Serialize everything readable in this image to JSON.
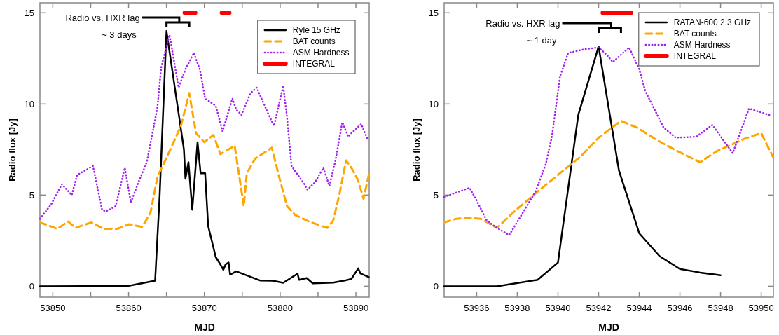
{
  "chart_data": [
    {
      "type": "line",
      "xlabel": "MJD",
      "ylabel": "Radio flux [Jy]",
      "xlim": [
        53848.3,
        53891.75
      ],
      "ylim": [
        -0.6,
        15.55
      ],
      "xticks": [
        53850,
        {
          "value": 53855,
          "label": null
        },
        53860,
        {
          "value": 53865,
          "label": null
        },
        53870,
        {
          "value": 53875,
          "label": null
        },
        53880,
        {
          "value": 53885,
          "label": null
        },
        53890
      ],
      "yticks": [
        0,
        5,
        10,
        15
      ],
      "grid": false,
      "legend": "top right",
      "marker": "none",
      "annotations": [
        "Radio vs. HXR lag",
        "~ 3 days"
      ],
      "series": [
        {
          "name": "Ryle 15 GHz",
          "color": "#000000",
          "line_style": "solid",
          "x": [
            53848.3,
            53860,
            53861,
            53863.5,
            53864.1,
            53865.0,
            53867.3,
            53867.5,
            53867.9,
            53868.4,
            53869.1,
            53869.5,
            53870.1,
            53870.5,
            53871.5,
            53872.1,
            53872.5,
            53872.8,
            53873.2,
            53873.4,
            53874.2,
            53877.4,
            53879,
            53880.4,
            53882.3,
            53882.5,
            53883.5,
            53884.3,
            53887,
            53888.4,
            53889.4,
            53890.3,
            53890.6,
            53891.7
          ],
          "values": [
            0,
            0.02,
            0.1,
            0.3,
            5,
            14.0,
            7.5,
            5.9,
            6.8,
            4.2,
            7.9,
            6.2,
            6.2,
            3.3,
            1.6,
            1.2,
            0.9,
            1.2,
            1.3,
            0.63,
            0.82,
            0.31,
            0.3,
            0.19,
            0.69,
            0.35,
            0.45,
            0.16,
            0.2,
            0.3,
            0.4,
            0.98,
            0.7,
            0.5
          ]
        },
        {
          "name": "BAT counts",
          "color": "#ffa500",
          "line_style": "dashed",
          "x": [
            53848.3,
            53850.6,
            53852.0,
            53853.0,
            53855.1,
            53856.7,
            53858.5,
            53860.1,
            53861.8,
            53862.9,
            53863.8,
            53865.4,
            53866.9,
            53868.0,
            53868.9,
            53870.0,
            53871.2,
            53872.1,
            53874.0,
            53875.2,
            53875.6,
            53876.7,
            53878.9,
            53879.8,
            53880.9,
            53882.0,
            53883.8,
            53886.2,
            53887.0,
            53887.8,
            53888.7,
            53889.4,
            53890.3,
            53891.0,
            53891.75
          ],
          "values": [
            3.5,
            3.15,
            3.55,
            3.2,
            3.5,
            3.15,
            3.15,
            3.4,
            3.25,
            4.05,
            6.0,
            7.4,
            8.8,
            10.6,
            8.4,
            7.9,
            8.3,
            7.25,
            7.7,
            4.4,
            6.2,
            7.0,
            7.6,
            6.1,
            4.4,
            3.9,
            3.55,
            3.2,
            3.6,
            5.0,
            6.9,
            6.5,
            5.8,
            4.8,
            6.2
          ]
        },
        {
          "name": "ASM Hardness",
          "color": "#a020f0",
          "line_style": "dotted",
          "x": [
            53848.3,
            53849.8,
            53850.3,
            53851.2,
            53852.5,
            53853.2,
            53855.3,
            53856.5,
            53857,
            53858.3,
            53859.5,
            53860.3,
            53861.2,
            53862.4,
            53863.8,
            53864.3,
            53865.4,
            53866.6,
            53867.5,
            53868.6,
            53869.4,
            53870.1,
            53871.5,
            53872.4,
            53873.7,
            53874.2,
            53874.9,
            53876.1,
            53876.9,
            53878.6,
            53879.2,
            53880.4,
            53880.9,
            53881.5,
            53883.2,
            53883.6,
            53884.6,
            53885.7,
            53886.5,
            53887.3,
            53888.2,
            53889.0,
            53889.4,
            53890.7,
            53891.5
          ],
          "values": [
            3.7,
            4.5,
            4.9,
            5.6,
            5.0,
            6.1,
            6.6,
            4.2,
            4.1,
            4.4,
            6.5,
            4.6,
            5.6,
            6.8,
            9.8,
            12.0,
            13.8,
            10.9,
            11.9,
            12.8,
            11.9,
            10.3,
            9.9,
            8.5,
            10.3,
            9.7,
            9.4,
            10.6,
            10.9,
            9.3,
            8.8,
            11.0,
            9.3,
            6.6,
            5.6,
            5.3,
            5.7,
            6.5,
            5.5,
            6.9,
            9.0,
            8.2,
            8.4,
            8.9,
            8.1
          ]
        },
        {
          "name": "INTEGRAL",
          "color": "#ff0000",
          "line_style": "solid",
          "x": [
            53867.4,
            53868.8,
            53870,
            53872.3,
            53873.3
          ],
          "values": [
            15,
            15,
            null,
            15,
            15
          ]
        }
      ]
    },
    {
      "type": "line",
      "xlabel": "MJD",
      "ylabel": "Radio flux [Jy]",
      "xlim": [
        53934.4,
        53950.6
      ],
      "ylim": [
        -0.6,
        15.55
      ],
      "xticks": [
        53936,
        53938,
        53940,
        53942,
        53944,
        53946,
        53948,
        53950
      ],
      "yticks": [
        0,
        5,
        10,
        15
      ],
      "grid": false,
      "legend": "top right",
      "marker": "none",
      "annotations": [
        "Radio vs. HXR lag",
        "~ 1 day"
      ],
      "series": [
        {
          "name": "RATAN-600 2.3 GHz",
          "color": "#000000",
          "line_style": "solid",
          "x": [
            53934.4,
            53937,
            53939,
            53940,
            53941,
            53942,
            53943,
            53944,
            53945,
            53946,
            53947,
            53948
          ],
          "values": [
            0,
            0,
            0.35,
            1.3,
            9.4,
            13.15,
            6.35,
            2.9,
            1.65,
            0.95,
            0.75,
            0.6
          ]
        },
        {
          "name": "BAT counts",
          "color": "#ffa500",
          "line_style": "dashed",
          "x": [
            53934.4,
            53935,
            53935.6,
            53936.2,
            53937,
            53937.8,
            53938.9,
            53940.1,
            53941.1,
            53942,
            53943.1,
            53943.9,
            53944.9,
            53945.9,
            53947,
            53947.8,
            53949.2,
            53950,
            53950.6
          ],
          "values": [
            3.5,
            3.7,
            3.75,
            3.7,
            3.2,
            4.05,
            5.1,
            6.2,
            7.1,
            8.15,
            9.07,
            8.7,
            8.0,
            7.4,
            6.8,
            7.4,
            8.1,
            8.4,
            7.05
          ]
        },
        {
          "name": "ASM Hardness",
          "color": "#a020f0",
          "line_style": "dotted",
          "x": [
            53934.4,
            53935.65,
            53936,
            53936.5,
            53937,
            53937.6,
            53938.2,
            53938.9,
            53939.4,
            53939.7,
            53940.1,
            53940.5,
            53941.3,
            53942,
            53942.4,
            53942.7,
            53943.5,
            53944,
            53944.3,
            53945.2,
            53945.8,
            53946.8,
            53947.6,
            53948.6,
            53949.4,
            53950.4
          ],
          "values": [
            4.9,
            5.4,
            4.7,
            3.6,
            3.2,
            2.8,
            3.9,
            5.2,
            6.7,
            8.2,
            11.5,
            12.8,
            13.0,
            13.1,
            12.7,
            12.3,
            13.1,
            11.9,
            10.7,
            8.7,
            8.15,
            8.2,
            8.85,
            7.3,
            9.75,
            9.4
          ]
        },
        {
          "name": "INTEGRAL",
          "color": "#ff0000",
          "line_style": "solid",
          "x": [
            53942.2,
            53943.6
          ],
          "values": [
            15,
            15
          ]
        }
      ]
    }
  ]
}
